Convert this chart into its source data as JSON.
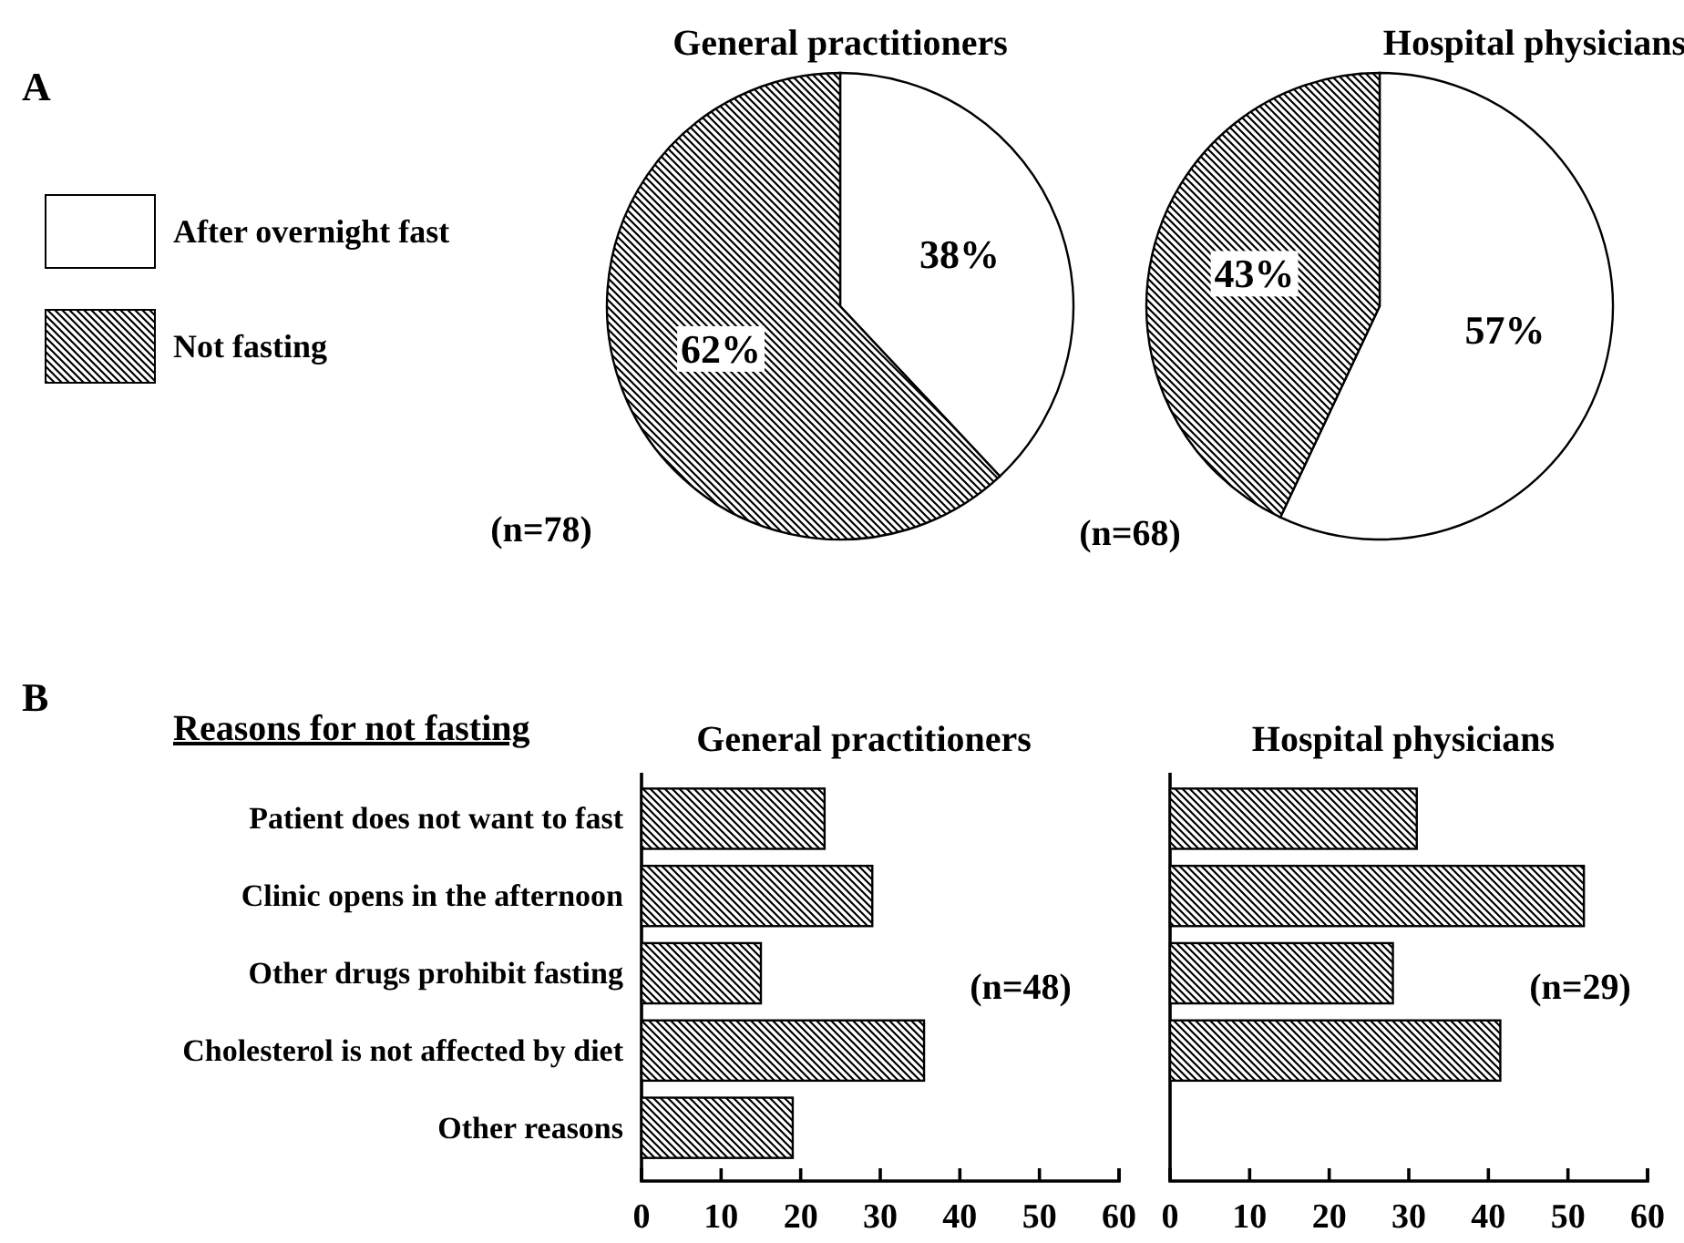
{
  "chart_data": [
    {
      "type": "pie",
      "title": "General practitioners",
      "categories": [
        "After overnight fast",
        "Not fasting"
      ],
      "values": [
        38,
        62
      ],
      "colors": [
        "#ffffff",
        "#000000"
      ],
      "value_labels": [
        "38%",
        "62%"
      ],
      "legend": "left",
      "annotations": [
        "A",
        "(n=78)"
      ]
    },
    {
      "type": "pie",
      "title": "Hospital physicians",
      "categories": [
        null,
        null
      ],
      "values": [
        57,
        43
      ],
      "colors": [
        "#ffffff",
        "#000000"
      ],
      "value_labels": [
        "57%",
        "43%"
      ],
      "annotations": [
        "(n=68)"
      ]
    },
    {
      "type": "bar",
      "orientation": "horizontal",
      "title": "General practitioners",
      "categories": [
        "Patient does not want to fast",
        "Clinic opens in the afternoon",
        "Other drugs prohibit fasting",
        "Cholesterol is not affected by diet",
        "Other reasons"
      ],
      "values": [
        23,
        29,
        15,
        35.5,
        19
      ],
      "color": "#000000",
      "xlim": [
        0,
        60
      ],
      "xticks": [
        0,
        10,
        20,
        30,
        40,
        50,
        60
      ],
      "annotations": [
        "B",
        "Reasons for not fasting",
        "(n=48)"
      ]
    },
    {
      "type": "bar",
      "orientation": "horizontal",
      "title": "Hospital physicians",
      "categories": [
        null,
        null,
        null,
        null,
        null
      ],
      "values": [
        31,
        52,
        28,
        41.5,
        null
      ],
      "color": "#000000",
      "xlim": [
        0,
        60
      ],
      "xticks": [
        0,
        10,
        20,
        30,
        40,
        50,
        60
      ],
      "tick_labels": "x",
      "annotations": [
        "(n=29)"
      ]
    }
  ]
}
